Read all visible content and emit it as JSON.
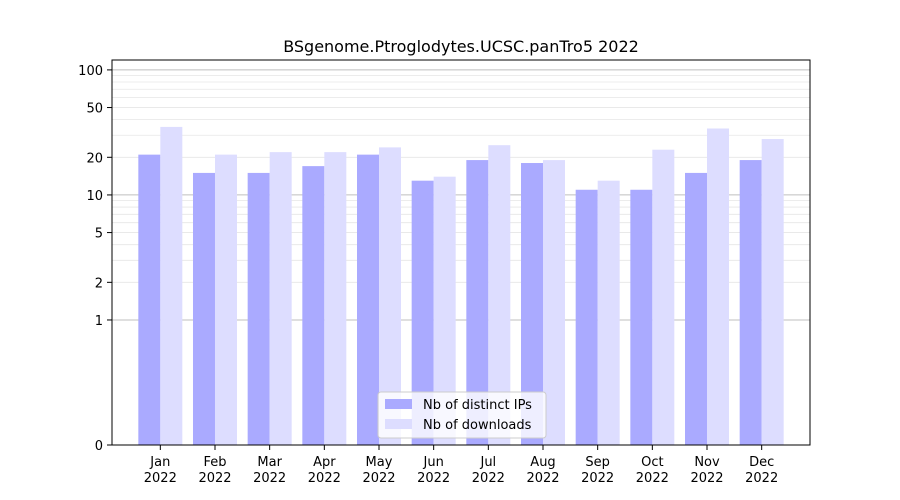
{
  "chart_data": {
    "type": "bar",
    "title": "BSgenome.Ptroglodytes.UCSC.panTro5 2022",
    "xlabel": "",
    "ylabel": "",
    "yscale": "symlog",
    "ylim": [
      0,
      120
    ],
    "yticks": [
      0,
      1,
      2,
      5,
      10,
      20,
      50,
      100
    ],
    "categories": [
      "Jan\n2022",
      "Feb\n2022",
      "Mar\n2022",
      "Apr\n2022",
      "May\n2022",
      "Jun\n2022",
      "Jul\n2022",
      "Aug\n2022",
      "Sep\n2022",
      "Oct\n2022",
      "Nov\n2022",
      "Dec\n2022"
    ],
    "series": [
      {
        "name": "Nb of distinct IPs",
        "color": "#aaaaff",
        "values": [
          21,
          15,
          15,
          17,
          21,
          13,
          19,
          18,
          11,
          11,
          15,
          19
        ]
      },
      {
        "name": "Nb of downloads",
        "color": "#ddddff",
        "values": [
          35,
          21,
          22,
          22,
          24,
          14,
          25,
          19,
          13,
          23,
          34,
          28
        ]
      }
    ],
    "legend_position": "bottom-center",
    "grid": true
  }
}
